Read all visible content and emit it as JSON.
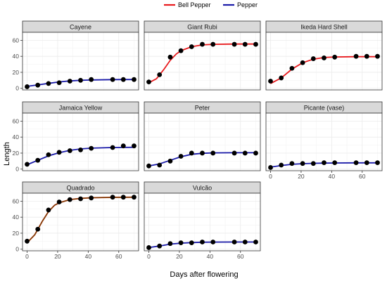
{
  "legend": [
    {
      "label": "Bell Pepper",
      "color": "#e8191c"
    },
    {
      "label": "Pepper",
      "color": "#1a1aa8"
    }
  ],
  "chart_data": {
    "type": "scatter",
    "xlabel": "Days after flowering",
    "ylabel": "Length",
    "xlim": [
      -3,
      73
    ],
    "ylim": [
      -2,
      70
    ],
    "x_ticks": [
      0,
      20,
      40,
      60
    ],
    "y_ticks": [
      0,
      20,
      40,
      60
    ],
    "grid": true,
    "legend_position": "top",
    "point_color": "#000000",
    "overlap_color": "#7a3a00",
    "panels": [
      {
        "name": "Cayene",
        "group": "Pepper",
        "x": [
          0,
          7,
          14,
          21,
          28,
          35,
          42,
          56,
          63,
          70
        ],
        "y": [
          2,
          4,
          6,
          7,
          9,
          10,
          11,
          11,
          11,
          11
        ],
        "fit": [
          [
            0,
            2.5
          ],
          [
            7,
            4.2
          ],
          [
            14,
            6.2
          ],
          [
            21,
            8
          ],
          [
            28,
            9.2
          ],
          [
            35,
            10
          ],
          [
            42,
            10.5
          ],
          [
            56,
            10.9
          ],
          [
            63,
            11
          ],
          [
            70,
            11
          ]
        ]
      },
      {
        "name": "Giant Rubi",
        "group": "Bell Pepper",
        "x": [
          0,
          7,
          14,
          21,
          28,
          35,
          42,
          56,
          63,
          70
        ],
        "y": [
          8,
          17,
          39,
          47,
          52,
          55,
          55,
          55,
          55,
          55
        ],
        "fit": [
          [
            0,
            7
          ],
          [
            5,
            12
          ],
          [
            10,
            24
          ],
          [
            14,
            35
          ],
          [
            18,
            43
          ],
          [
            21,
            47
          ],
          [
            28,
            52
          ],
          [
            35,
            54.3
          ],
          [
            42,
            55
          ],
          [
            56,
            55.3
          ],
          [
            70,
            55.3
          ]
        ]
      },
      {
        "name": "Ikeda Hard Shell",
        "group": "Bell Pepper",
        "x": [
          0,
          7,
          14,
          21,
          28,
          35,
          42,
          56,
          63,
          70
        ],
        "y": [
          9,
          13,
          25,
          32,
          37,
          38,
          39,
          40,
          40,
          40
        ],
        "fit": [
          [
            0,
            6
          ],
          [
            7,
            13
          ],
          [
            14,
            24
          ],
          [
            21,
            32
          ],
          [
            28,
            36.5
          ],
          [
            35,
            38.5
          ],
          [
            42,
            39.2
          ],
          [
            56,
            39.5
          ],
          [
            70,
            39.5
          ]
        ]
      },
      {
        "name": "Jamaica Yellow",
        "group": "Pepper",
        "x": [
          0,
          7,
          14,
          21,
          28,
          35,
          42,
          56,
          63,
          70
        ],
        "y": [
          6,
          11,
          18,
          21,
          23,
          24,
          26,
          27,
          29,
          29
        ],
        "fit": [
          [
            0,
            5.5
          ],
          [
            7,
            11
          ],
          [
            14,
            16.5
          ],
          [
            21,
            20.5
          ],
          [
            28,
            23.5
          ],
          [
            35,
            25.2
          ],
          [
            42,
            26.2
          ],
          [
            56,
            27
          ],
          [
            70,
            27.2
          ]
        ]
      },
      {
        "name": "Peter",
        "group": "Pepper",
        "x": [
          0,
          7,
          14,
          21,
          28,
          35,
          42,
          56,
          63,
          70
        ],
        "y": [
          4,
          5,
          10,
          16,
          20,
          20,
          20,
          20,
          20,
          20
        ],
        "fit": [
          [
            0,
            4
          ],
          [
            7,
            6.5
          ],
          [
            14,
            11
          ],
          [
            21,
            15.5
          ],
          [
            28,
            18.5
          ],
          [
            35,
            19.8
          ],
          [
            42,
            20.3
          ],
          [
            56,
            20.5
          ],
          [
            70,
            20.5
          ]
        ]
      },
      {
        "name": "Picante (vase)",
        "group": "Pepper",
        "x": [
          0,
          7,
          14,
          21,
          28,
          35,
          42,
          56,
          63,
          70
        ],
        "y": [
          2,
          5,
          7,
          7,
          7,
          8,
          8,
          8,
          8,
          8
        ],
        "fit": [
          [
            0,
            2.5
          ],
          [
            7,
            4.5
          ],
          [
            14,
            6
          ],
          [
            21,
            6.8
          ],
          [
            28,
            7.2
          ],
          [
            35,
            7.5
          ],
          [
            42,
            7.7
          ],
          [
            56,
            7.8
          ],
          [
            70,
            7.8
          ]
        ]
      },
      {
        "name": "Quadrado",
        "group": "Bell Pepper",
        "overlap": true,
        "x": [
          0,
          7,
          14,
          21,
          28,
          35,
          42,
          56,
          63,
          70
        ],
        "y": [
          10,
          25,
          49,
          59,
          62,
          63,
          64,
          65,
          65,
          65
        ],
        "fit": [
          [
            0,
            8
          ],
          [
            5,
            18
          ],
          [
            10,
            35
          ],
          [
            14,
            47
          ],
          [
            18,
            55
          ],
          [
            21,
            58
          ],
          [
            28,
            62
          ],
          [
            35,
            63.5
          ],
          [
            42,
            64.3
          ],
          [
            56,
            64.8
          ],
          [
            70,
            65
          ]
        ]
      },
      {
        "name": "Vulcão",
        "group": "Pepper",
        "x": [
          0,
          7,
          14,
          21,
          28,
          35,
          42,
          56,
          63,
          70
        ],
        "y": [
          2,
          4,
          7,
          8,
          8,
          9,
          9,
          9,
          9,
          9
        ],
        "fit": [
          [
            0,
            2
          ],
          [
            7,
            4
          ],
          [
            14,
            6.3
          ],
          [
            21,
            7.6
          ],
          [
            28,
            8.3
          ],
          [
            35,
            8.7
          ],
          [
            42,
            8.9
          ],
          [
            56,
            9
          ],
          [
            70,
            9
          ]
        ]
      }
    ]
  }
}
